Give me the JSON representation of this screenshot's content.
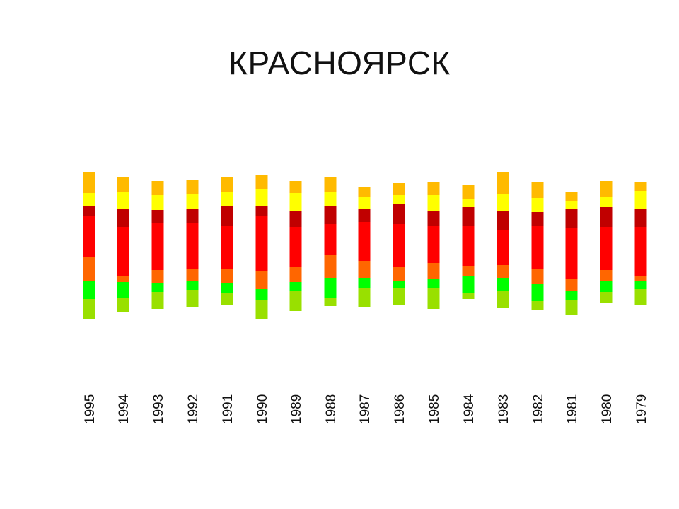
{
  "title": "КРАСНОЯРСК",
  "colors": {
    "orange_top": "#ffba00",
    "yellow": "#ffff00",
    "dark_red": "#c00000",
    "red": "#ff0000",
    "orange": "#ff6600",
    "green": "#00ff00",
    "yellow_green": "#99e000"
  },
  "chart_data": {
    "type": "bar",
    "stacked": true,
    "categories": [
      "1995",
      "1994",
      "1993",
      "1992",
      "1991",
      "1990",
      "1989",
      "1988",
      "1987",
      "1986",
      "1985",
      "1984",
      "1983",
      "1982",
      "1981",
      "1980",
      "1979"
    ],
    "series": [
      {
        "color_key": "orange_top",
        "values": [
          30,
          20,
          20,
          20,
          20,
          20,
          17,
          22,
          13,
          17,
          18,
          20,
          31,
          23,
          12,
          23,
          13
        ]
      },
      {
        "color_key": "yellow",
        "values": [
          19,
          25,
          21,
          22,
          20,
          24,
          25,
          19,
          17,
          13,
          22,
          11,
          24,
          20,
          12,
          14,
          25
        ]
      },
      {
        "color_key": "dark_red",
        "values": [
          13,
          25,
          18,
          20,
          29,
          14,
          23,
          26,
          19,
          28,
          21,
          27,
          28,
          20,
          26,
          28,
          26
        ]
      },
      {
        "color_key": "red",
        "values": [
          58,
          70,
          67,
          64,
          61,
          77,
          57,
          44,
          55,
          61,
          53,
          56,
          49,
          61,
          73,
          61,
          69
        ]
      },
      {
        "color_key": "orange",
        "values": [
          34,
          8,
          19,
          17,
          19,
          26,
          21,
          32,
          24,
          20,
          23,
          14,
          18,
          21,
          16,
          15,
          7
        ]
      },
      {
        "color_key": "green",
        "values": [
          26,
          22,
          12,
          13,
          14,
          16,
          13,
          28,
          15,
          10,
          13,
          24,
          18,
          24,
          14,
          16,
          12
        ]
      },
      {
        "color_key": "yellow_green",
        "values": [
          28,
          20,
          24,
          24,
          18,
          26,
          28,
          12,
          26,
          24,
          29,
          9,
          25,
          12,
          20,
          16,
          22
        ]
      }
    ]
  }
}
